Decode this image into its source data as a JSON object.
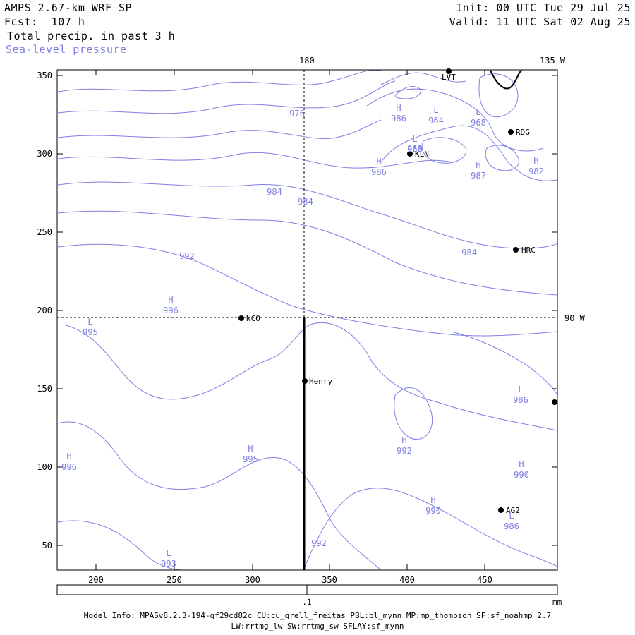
{
  "header": {
    "model": "AMPS 2.67-km WRF SP",
    "fcst": "Fcst:  107 h",
    "precip": "Total precip. in past 3 h",
    "slp": "Sea-level pressure",
    "init": "Init: 00 UTC Tue 29 Jul 25",
    "valid": "Valid: 11 UTC Sat 02 Aug 25"
  },
  "map": {
    "top_labels": [
      "180",
      "135 W"
    ],
    "right_labels": [
      "90 W"
    ],
    "x_ticks": [
      "200",
      "250",
      "300",
      "350",
      "400",
      "450"
    ],
    "y_ticks": [
      "350",
      "300",
      "250",
      "200",
      "150",
      "100",
      "50"
    ],
    "stations": [
      {
        "name": "LVT"
      },
      {
        "name": "RDG"
      },
      {
        "name": "KLN"
      },
      {
        "name": "HRC"
      },
      {
        "name": "NCO"
      },
      {
        "name": "Henry"
      },
      {
        "name": "AG2"
      },
      {
        "name": ""
      }
    ],
    "centers": [
      {
        "type": "H",
        "value": "986"
      },
      {
        "type": "L",
        "value": "964"
      },
      {
        "type": "L",
        "value": "968"
      },
      {
        "type": "L",
        "value": "960"
      },
      {
        "type": "H",
        "value": "986"
      },
      {
        "type": "H",
        "value": "987"
      },
      {
        "type": "H",
        "value": "982"
      },
      {
        "type": "H",
        "value": "996"
      },
      {
        "type": "L",
        "value": "995"
      },
      {
        "type": "L",
        "value": "986"
      },
      {
        "type": "H",
        "value": "992"
      },
      {
        "type": "H",
        "value": "995"
      },
      {
        "type": "H",
        "value": "996"
      },
      {
        "type": "H",
        "value": "990"
      },
      {
        "type": "H",
        "value": "990"
      },
      {
        "type": "L",
        "value": "986"
      },
      {
        "type": "L",
        "value": "993"
      }
    ],
    "contour_labels": [
      "976",
      "968",
      "984",
      "984",
      "992",
      "984",
      "992"
    ]
  },
  "colorbar": {
    "tick_label": ".1",
    "unit": "mm"
  },
  "footer": {
    "line1": "Model Info: MPASv8.2.3-194-gf29cd82c CU:cu_grell_freitas PBL:bl_mynn MP:mp_thompson SF:sf_noahmp 2.7",
    "line2": "LW:rrtmg_lw SW:rrtmg_sw SFLAY:sf_mynn"
  },
  "colors": {
    "contour": "#7f7fe6",
    "frame": "#000000"
  }
}
